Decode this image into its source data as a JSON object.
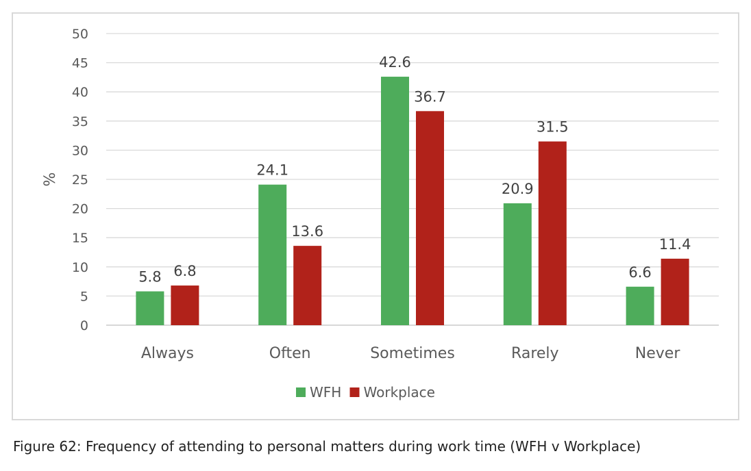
{
  "chart_data": {
    "type": "bar",
    "categories": [
      "Always",
      "Often",
      "Sometimes",
      "Rarely",
      "Never"
    ],
    "series": [
      {
        "name": "WFH",
        "values": [
          5.8,
          24.1,
          42.6,
          20.9,
          6.6
        ],
        "color": "#4eac5b"
      },
      {
        "name": "Workplace",
        "values": [
          6.8,
          13.6,
          36.7,
          31.5,
          11.4
        ],
        "color": "#b1221a"
      }
    ],
    "ylabel": "%",
    "xlabel": "",
    "ylim": [
      0,
      50
    ],
    "yticks": [
      0,
      5,
      10,
      15,
      20,
      25,
      30,
      35,
      40,
      45,
      50
    ],
    "grid": true,
    "legend": "bottom",
    "data_labels": true
  },
  "caption": "Figure 62: Frequency of attending to personal matters during work time (WFH v Workplace)"
}
